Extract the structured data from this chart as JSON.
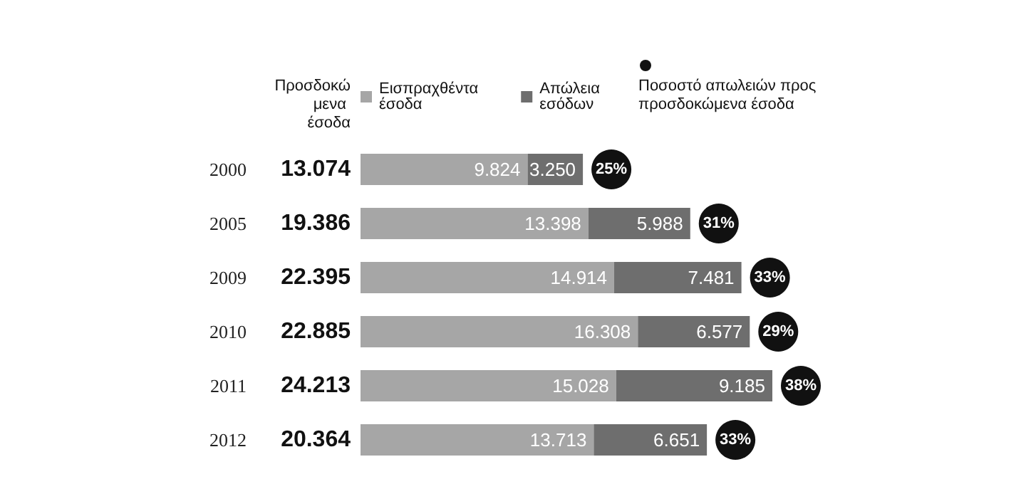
{
  "chart_data": {
    "type": "bar",
    "orientation": "horizontal",
    "stacked": true,
    "legend": "top",
    "grid": false,
    "categories": [
      "2000",
      "2005",
      "2009",
      "2010",
      "2011",
      "2012"
    ],
    "series": [
      {
        "name": "Εισπραχθέντα έσοδα",
        "color": "#a6a6a6",
        "values": [
          9824,
          13398,
          14914,
          16308,
          15028,
          13713
        ],
        "value_labels": [
          "9.824",
          "13.398",
          "14.914",
          "16.308",
          "15.028",
          "13.713"
        ]
      },
      {
        "name": "Απώλεια εσόδων",
        "color": "#6e6e6e",
        "values": [
          3250,
          5988,
          7481,
          6577,
          9185,
          6651
        ],
        "value_labels": [
          "3.250",
          "5.988",
          "7.481",
          "6.577",
          "9.185",
          "6.651"
        ]
      }
    ],
    "totals": [
      "13.074",
      "19.386",
      "22.395",
      "22.885",
      "24.213",
      "20.364"
    ],
    "annotations": [
      "Προσδοκώμενα έσοδα",
      "Ποσοστό απωλειών προς προσδοκώμενα έσοδα",
      {
        "text": "25%",
        "x": 13074,
        "y": "2000"
      },
      {
        "text": "31%",
        "x": 19386,
        "y": "2005"
      },
      {
        "text": "33%",
        "x": 22395,
        "y": "2009"
      },
      {
        "text": "29%",
        "x": 22885,
        "y": "2010"
      },
      {
        "text": "38%",
        "x": 24213,
        "y": "2011"
      },
      {
        "text": "33%",
        "x": 20364,
        "y": "2012"
      }
    ]
  }
}
